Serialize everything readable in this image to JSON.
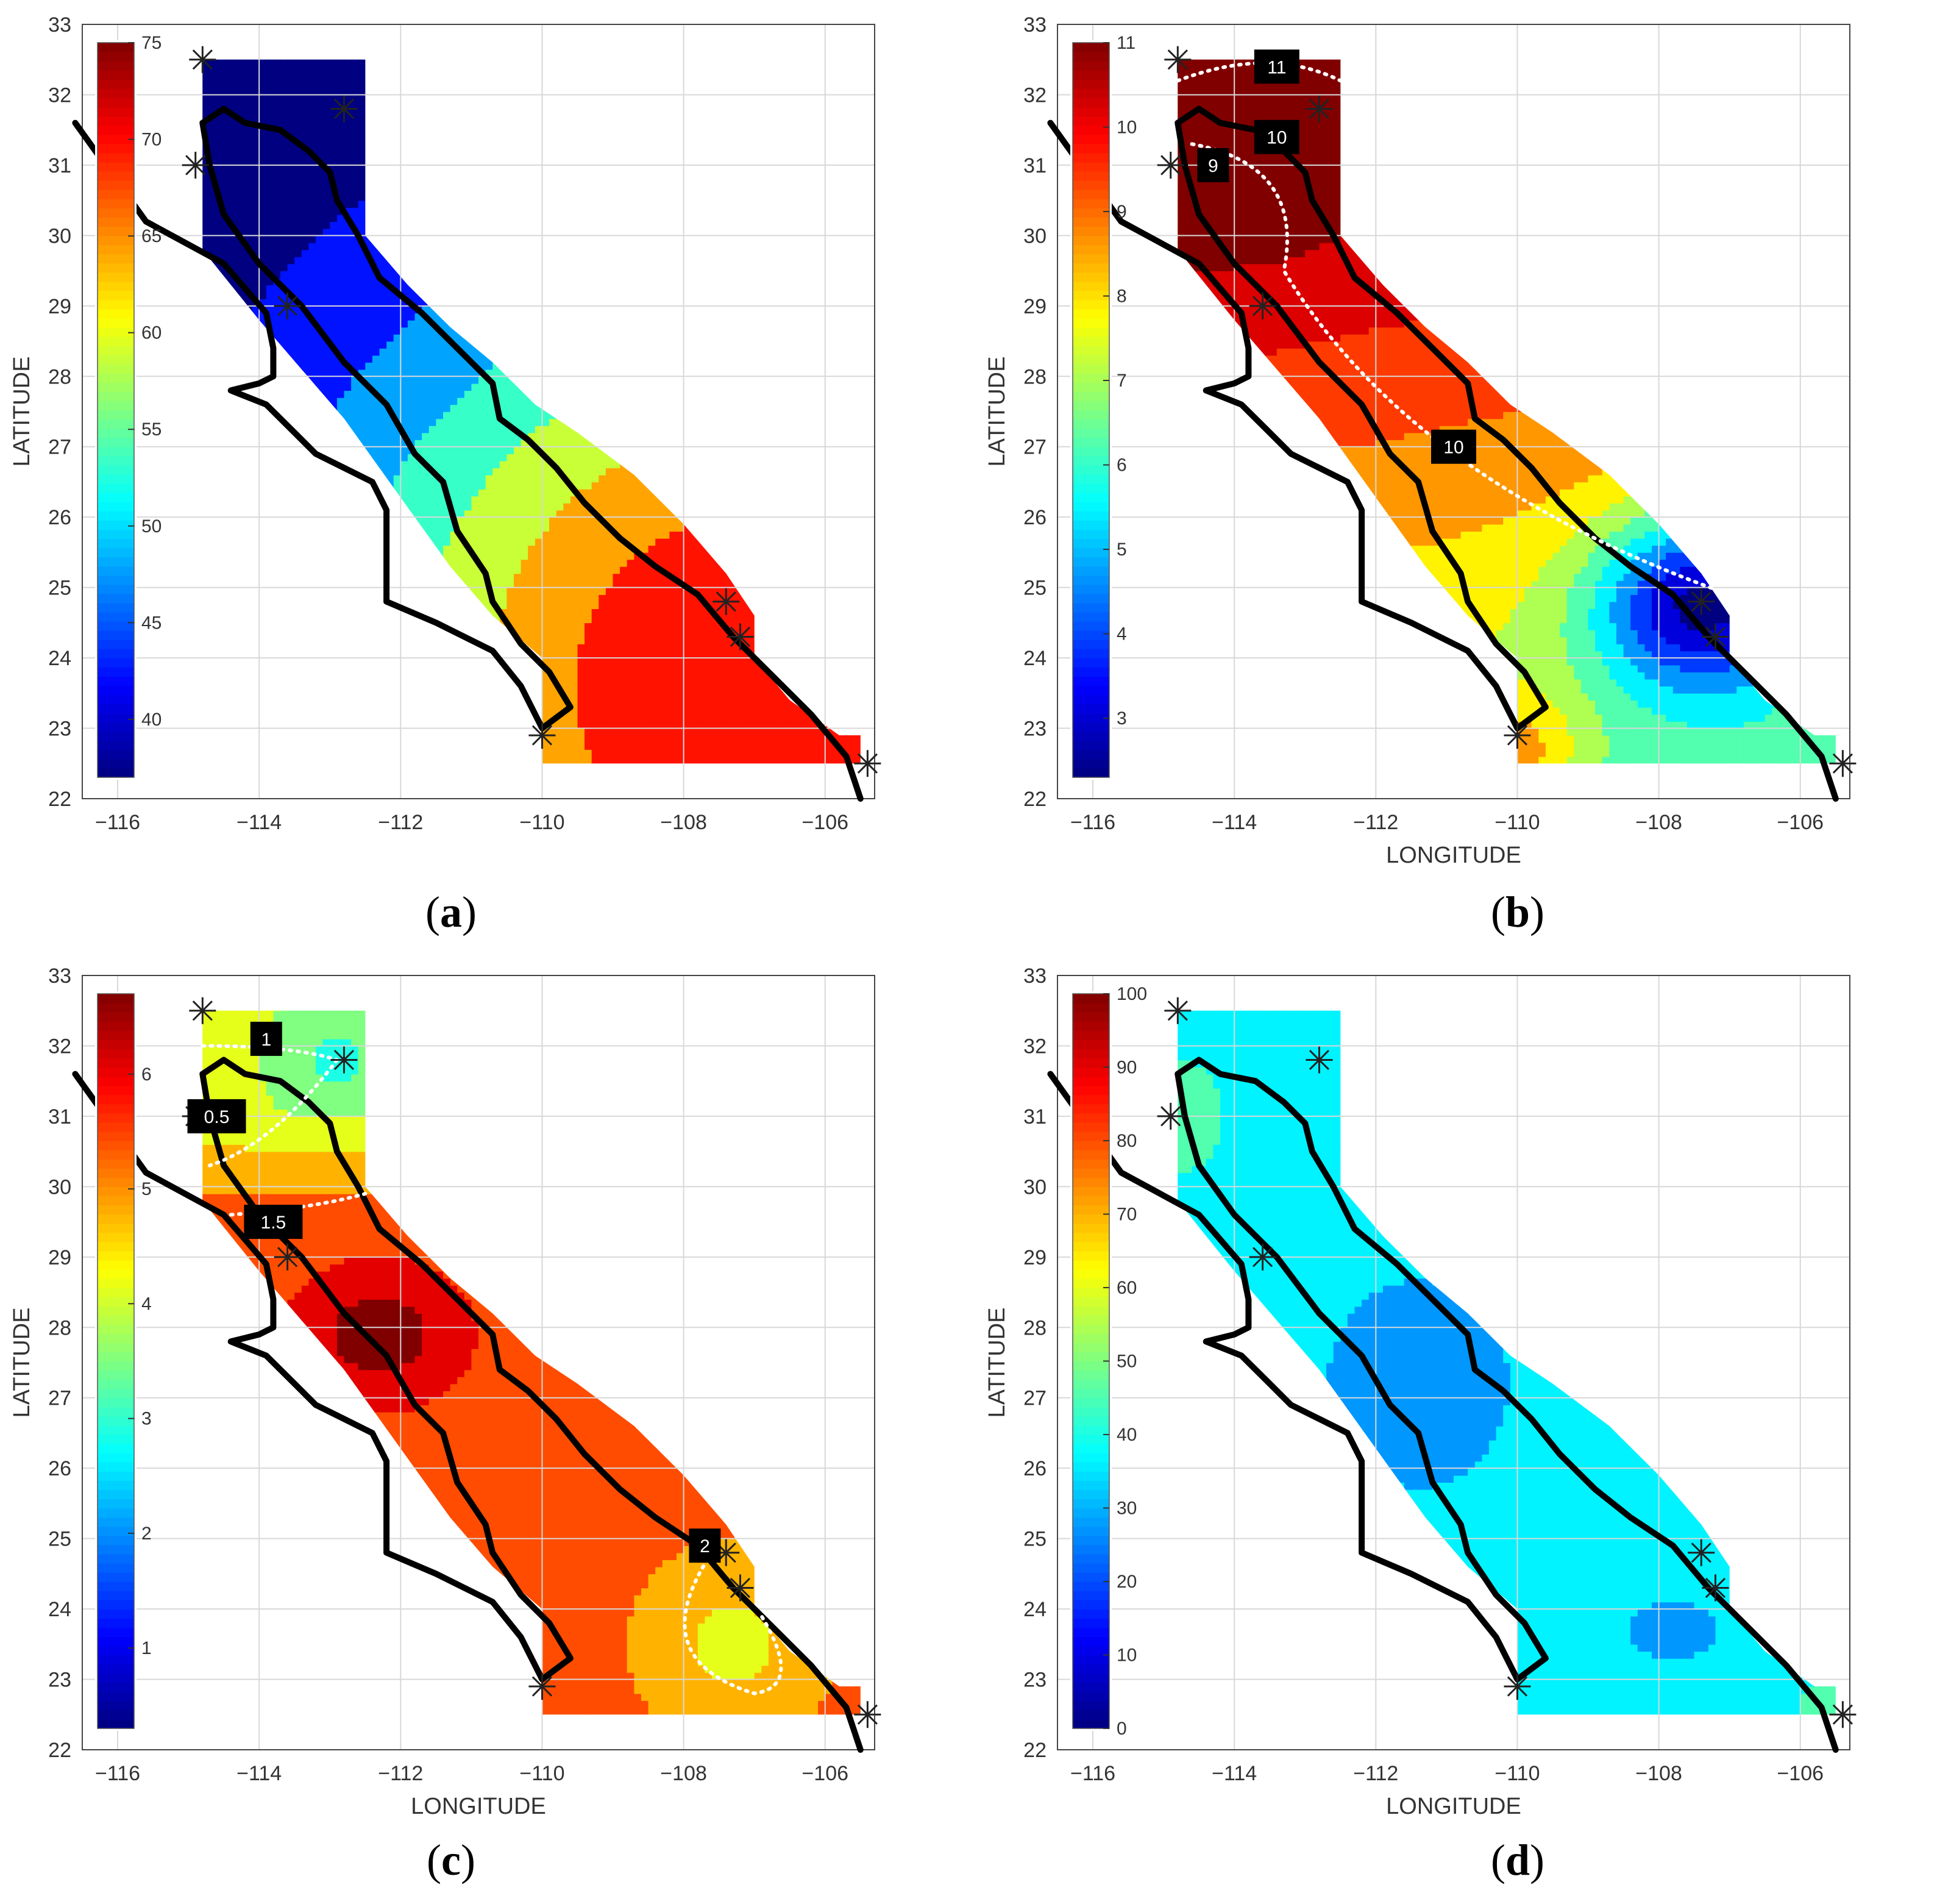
{
  "chart_data": [
    {
      "type": "heatmap",
      "panel_label": "a",
      "title": "",
      "xlabel": "",
      "ylabel": "LATITUDE",
      "xlim": [
        -116.5,
        -105.3
      ],
      "ylim": [
        22,
        33
      ],
      "xticks": [
        -116,
        -114,
        -112,
        -110,
        -108,
        -106
      ],
      "yticks": [
        22,
        23,
        24,
        25,
        26,
        27,
        28,
        29,
        30,
        31,
        32,
        33
      ],
      "colorbar": {
        "min": 37,
        "max": 75,
        "ticks": [
          40,
          45,
          50,
          55,
          60,
          65,
          70,
          75
        ]
      },
      "contour_labels": [],
      "stations": [
        [
          -114.8,
          32.5
        ],
        [
          -114.9,
          31.0
        ],
        [
          -112.8,
          31.8
        ],
        [
          -113.6,
          29.0
        ],
        [
          -110.0,
          22.9
        ],
        [
          -107.4,
          24.8
        ],
        [
          -107.2,
          24.3
        ],
        [
          -105.4,
          22.5
        ]
      ]
    },
    {
      "type": "heatmap",
      "panel_label": "b",
      "title": "",
      "xlabel": "LONGITUDE",
      "ylabel": "LATITUDE",
      "xlim": [
        -116.5,
        -105.3
      ],
      "ylim": [
        22,
        33
      ],
      "xticks": [
        -116,
        -114,
        -112,
        -110,
        -108,
        -106
      ],
      "yticks": [
        22,
        23,
        24,
        25,
        26,
        27,
        28,
        29,
        30,
        31,
        32,
        33
      ],
      "colorbar": {
        "min": 2.3,
        "max": 11,
        "ticks": [
          3,
          4,
          5,
          6,
          7,
          8,
          9,
          10,
          11
        ]
      },
      "contour_labels": [
        {
          "text": "11",
          "lon": -113.4,
          "lat": 32.4
        },
        {
          "text": "10",
          "lon": -113.4,
          "lat": 31.4
        },
        {
          "text": "9",
          "lon": -114.3,
          "lat": 31.0
        },
        {
          "text": "10",
          "lon": -110.9,
          "lat": 27.0
        }
      ],
      "stations": [
        [
          -114.8,
          32.5
        ],
        [
          -114.9,
          31.0
        ],
        [
          -112.8,
          31.8
        ],
        [
          -113.6,
          29.0
        ],
        [
          -110.0,
          22.9
        ],
        [
          -107.4,
          24.8
        ],
        [
          -107.2,
          24.3
        ],
        [
          -105.4,
          22.5
        ]
      ]
    },
    {
      "type": "heatmap",
      "panel_label": "c",
      "title": "",
      "xlabel": "LONGITUDE",
      "ylabel": "LATITUDE",
      "xlim": [
        -116.5,
        -105.3
      ],
      "ylim": [
        22,
        33
      ],
      "xticks": [
        -116,
        -114,
        -112,
        -110,
        -108,
        -106
      ],
      "yticks": [
        22,
        23,
        24,
        25,
        26,
        27,
        28,
        29,
        30,
        31,
        32,
        33
      ],
      "colorbar": {
        "min": 0.3,
        "max": 6.7,
        "ticks": [
          1,
          2,
          3,
          4,
          5,
          6
        ]
      },
      "contour_labels": [
        {
          "text": "1",
          "lon": -113.9,
          "lat": 32.1
        },
        {
          "text": "0.5",
          "lon": -114.6,
          "lat": 31.0
        },
        {
          "text": "1.5",
          "lon": -113.8,
          "lat": 29.5
        },
        {
          "text": "2",
          "lon": -107.7,
          "lat": 24.9
        }
      ],
      "stations": [
        [
          -114.8,
          32.5
        ],
        [
          -114.9,
          31.0
        ],
        [
          -112.8,
          31.8
        ],
        [
          -113.6,
          29.0
        ],
        [
          -110.0,
          22.9
        ],
        [
          -107.4,
          24.8
        ],
        [
          -107.2,
          24.3
        ],
        [
          -105.4,
          22.5
        ]
      ]
    },
    {
      "type": "heatmap",
      "panel_label": "d",
      "title": "",
      "xlabel": "LONGITUDE",
      "ylabel": "LATITUDE",
      "xlim": [
        -116.5,
        -105.3
      ],
      "ylim": [
        22,
        33
      ],
      "xticks": [
        -116,
        -114,
        -112,
        -110,
        -108,
        -106
      ],
      "yticks": [
        22,
        23,
        24,
        25,
        26,
        27,
        28,
        29,
        30,
        31,
        32,
        33
      ],
      "colorbar": {
        "min": 0,
        "max": 100,
        "ticks": [
          0,
          10,
          20,
          30,
          40,
          50,
          60,
          70,
          80,
          90,
          100
        ]
      },
      "contour_labels": [],
      "stations": [
        [
          -114.8,
          32.5
        ],
        [
          -114.9,
          31.0
        ],
        [
          -112.8,
          31.8
        ],
        [
          -113.6,
          29.0
        ],
        [
          -110.0,
          22.9
        ],
        [
          -107.4,
          24.8
        ],
        [
          -107.2,
          24.3
        ],
        [
          -105.4,
          22.5
        ]
      ]
    }
  ]
}
